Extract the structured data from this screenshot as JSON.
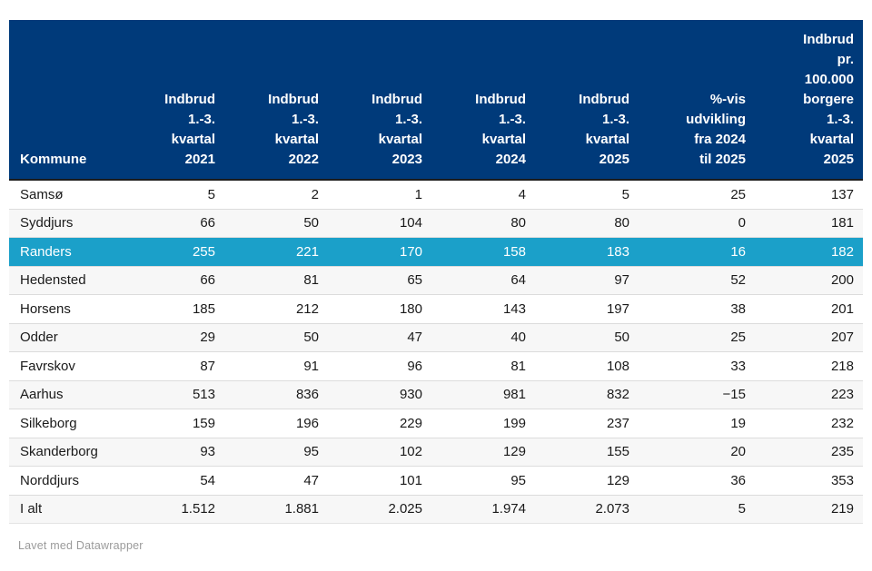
{
  "table": {
    "header": {
      "columns": [
        "Kommune",
        "Indbrud\n1.-3.\nkvartal\n2021",
        "Indbrud\n1.-3.\nkvartal\n2022",
        "Indbrud\n1.-3.\nkvartal\n2023",
        "Indbrud\n1.-3.\nkvartal\n2024",
        "Indbrud\n1.-3.\nkvartal\n2025",
        "%-vis\nudvikling\nfra 2024\ntil 2025",
        "Indbrud\npr.\n100.000\nborgere\n1.-3.\nkvartal\n2025"
      ]
    },
    "rows": [
      {
        "cells": [
          "Samsø",
          "5",
          "2",
          "1",
          "4",
          "5",
          "25",
          "137"
        ],
        "highlight": false
      },
      {
        "cells": [
          "Syddjurs",
          "66",
          "50",
          "104",
          "80",
          "80",
          "0",
          "181"
        ],
        "highlight": false
      },
      {
        "cells": [
          "Randers",
          "255",
          "221",
          "170",
          "158",
          "183",
          "16",
          "182"
        ],
        "highlight": true
      },
      {
        "cells": [
          "Hedensted",
          "66",
          "81",
          "65",
          "64",
          "97",
          "52",
          "200"
        ],
        "highlight": false
      },
      {
        "cells": [
          "Horsens",
          "185",
          "212",
          "180",
          "143",
          "197",
          "38",
          "201"
        ],
        "highlight": false
      },
      {
        "cells": [
          "Odder",
          "29",
          "50",
          "47",
          "40",
          "50",
          "25",
          "207"
        ],
        "highlight": false
      },
      {
        "cells": [
          "Favrskov",
          "87",
          "91",
          "96",
          "81",
          "108",
          "33",
          "218"
        ],
        "highlight": false
      },
      {
        "cells": [
          "Aarhus",
          "513",
          "836",
          "930",
          "981",
          "832",
          "−15",
          "223"
        ],
        "highlight": false
      },
      {
        "cells": [
          "Silkeborg",
          "159",
          "196",
          "229",
          "199",
          "237",
          "19",
          "232"
        ],
        "highlight": false
      },
      {
        "cells": [
          "Skanderborg",
          "93",
          "95",
          "102",
          "129",
          "155",
          "20",
          "235"
        ],
        "highlight": false
      },
      {
        "cells": [
          "Norddjurs",
          "54",
          "47",
          "101",
          "95",
          "129",
          "36",
          "353"
        ],
        "highlight": false
      },
      {
        "cells": [
          "I alt",
          "1.512",
          "1.881",
          "2.025",
          "1.974",
          "2.073",
          "5",
          "219"
        ],
        "highlight": false
      }
    ]
  },
  "footer": {
    "credit": "Lavet med Datawrapper"
  },
  "colors": {
    "header_bg": "#003a7a",
    "header_text": "#ffffff",
    "highlight_bg": "#1ba0c9",
    "highlight_text": "#ffffff",
    "stripe_bg": "#f7f7f7",
    "row_separator": "#dcdcdc",
    "body_text": "#1a1a1a",
    "credit_text": "#9b9b9b"
  },
  "chart_data": {
    "type": "table",
    "title": "",
    "columns": [
      "Kommune",
      "Indbrud 1.-3. kvartal 2021",
      "Indbrud 1.-3. kvartal 2022",
      "Indbrud 1.-3. kvartal 2023",
      "Indbrud 1.-3. kvartal 2024",
      "Indbrud 1.-3. kvartal 2025",
      "%-vis udvikling fra 2024 til 2025",
      "Indbrud pr. 100.000 borgere 1.-3. kvartal 2025"
    ],
    "rows": [
      [
        "Samsø",
        5,
        2,
        1,
        4,
        5,
        25,
        137
      ],
      [
        "Syddjurs",
        66,
        50,
        104,
        80,
        80,
        0,
        181
      ],
      [
        "Randers",
        255,
        221,
        170,
        158,
        183,
        16,
        182
      ],
      [
        "Hedensted",
        66,
        81,
        65,
        64,
        97,
        52,
        200
      ],
      [
        "Horsens",
        185,
        212,
        180,
        143,
        197,
        38,
        201
      ],
      [
        "Odder",
        29,
        50,
        47,
        40,
        50,
        25,
        207
      ],
      [
        "Favrskov",
        87,
        91,
        96,
        81,
        108,
        33,
        218
      ],
      [
        "Aarhus",
        513,
        836,
        930,
        981,
        832,
        -15,
        223
      ],
      [
        "Silkeborg",
        159,
        196,
        229,
        199,
        237,
        19,
        232
      ],
      [
        "Skanderborg",
        93,
        95,
        102,
        129,
        155,
        20,
        235
      ],
      [
        "Norddjurs",
        54,
        47,
        101,
        95,
        129,
        36,
        353
      ],
      [
        "I alt",
        1512,
        1881,
        2025,
        1974,
        2073,
        5,
        219
      ]
    ],
    "highlighted_row": "Randers",
    "zebra_striping": true,
    "credit": "Lavet med Datawrapper"
  }
}
